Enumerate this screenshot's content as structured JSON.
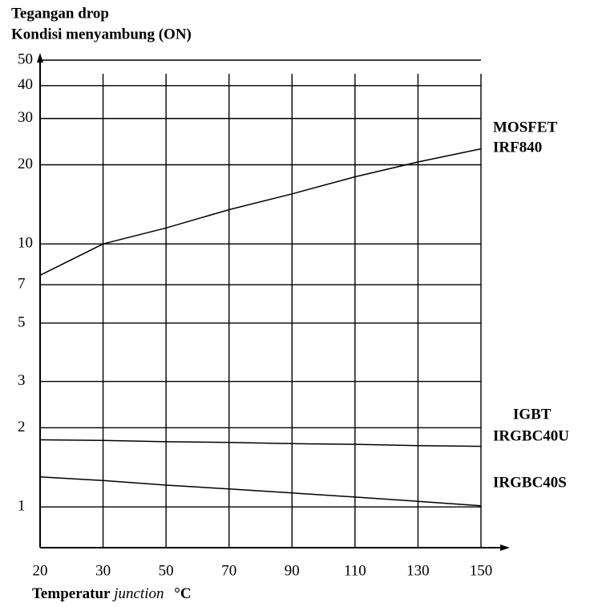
{
  "chart_data": {
    "type": "line",
    "title": [
      "Tegangan drop",
      "Kondisi menyambung (ON)"
    ],
    "xlabel": {
      "main": "Temperatur",
      "italic": "junction",
      "unit": "°C"
    },
    "categories": [
      "20",
      "30",
      "50",
      "70",
      "90",
      "110",
      "130",
      "150"
    ],
    "ylim": [
      0.7,
      50
    ],
    "yscale": "log",
    "yticks": [
      1,
      2,
      3,
      5,
      7,
      10,
      20,
      30,
      40,
      50
    ],
    "grid": true,
    "annotations": [
      "MOSFET",
      "IGBT"
    ],
    "series": [
      {
        "name": "IRF840",
        "group": "MOSFET",
        "color": "#000000",
        "values": [
          7.6,
          10,
          11.5,
          13.5,
          15.5,
          18,
          20.5,
          23
        ]
      },
      {
        "name": "IRGBC40U",
        "group": "IGBT",
        "color": "#000000",
        "values": [
          1.8,
          1.79,
          1.77,
          1.76,
          1.74,
          1.73,
          1.71,
          1.7
        ]
      },
      {
        "name": "IRGBC40S",
        "group": "IGBT",
        "color": "#000000",
        "values": [
          1.3,
          1.26,
          1.21,
          1.17,
          1.13,
          1.09,
          1.05,
          1.01
        ]
      }
    ]
  }
}
